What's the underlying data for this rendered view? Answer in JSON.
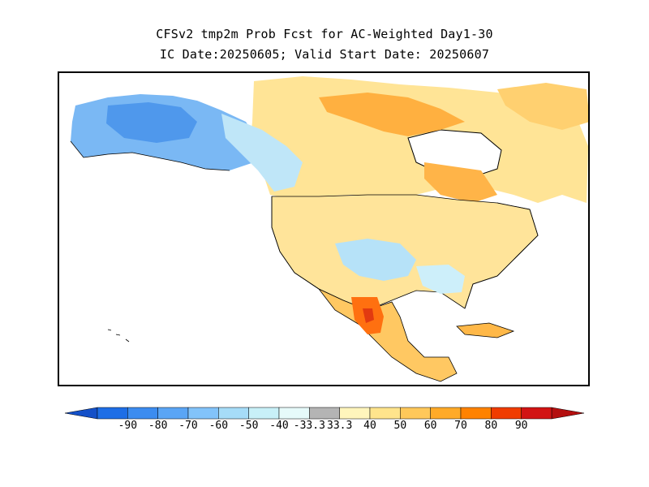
{
  "title": {
    "line1": "CFSv2 tmp2m Prob Fcst for AC-Weighted Day1-30",
    "line2": "IC Date:20250605; Valid Start Date: 20250607"
  },
  "colorbar": {
    "labels": [
      "-90",
      "-80",
      "-70",
      "-60",
      "-50",
      "-40",
      "-33.3",
      "33.3",
      "40",
      "50",
      "60",
      "70",
      "80",
      "90"
    ],
    "bins": [
      {
        "color": "#1e6ee6"
      },
      {
        "color": "#3c8cf0"
      },
      {
        "color": "#5aa5f5"
      },
      {
        "color": "#82c3fa"
      },
      {
        "color": "#a6dcf8"
      },
      {
        "color": "#c8f0f8"
      },
      {
        "color": "#e6fafa"
      },
      {
        "color": "#b4b4b4"
      },
      {
        "color": "#fff5bc"
      },
      {
        "color": "#ffe48c"
      },
      {
        "color": "#ffc85a"
      },
      {
        "color": "#ffaa28"
      },
      {
        "color": "#ff8200"
      },
      {
        "color": "#f03c00"
      },
      {
        "color": "#d21414"
      }
    ],
    "low_arrow_color": "#1450c8",
    "high_arrow_color": "#b40f0f"
  },
  "map": {
    "regions": [
      {
        "name": "alaska-cold",
        "color": "#6fb0f2"
      },
      {
        "name": "canada-warm",
        "color": "#ffd878"
      },
      {
        "name": "mexico-hot",
        "color": "#ff7a14"
      }
    ]
  }
}
